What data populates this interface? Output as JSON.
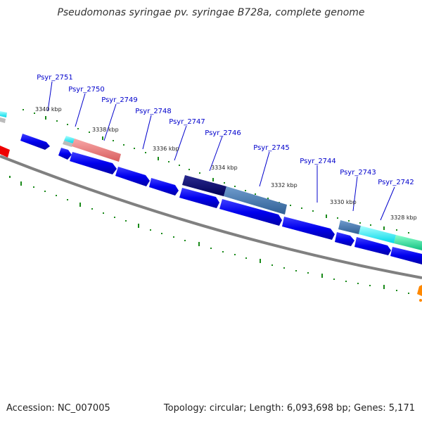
{
  "title": "Pseudomonas syringae pv. syringae B728a, complete genome",
  "accession": "Accession: NC_007005",
  "summary": "Topology: circular; Length: 6,093,698 bp; Genes: 5,171",
  "colors": {
    "forward_gene": "#0000ee",
    "backbone": "#808080",
    "label": "#0000cc",
    "tick": "#1a8a1a"
  },
  "gene_labels": [
    "Psyr_2751",
    "Psyr_2750",
    "Psyr_2749",
    "Psyr_2748",
    "Psyr_2747",
    "Psyr_2746",
    "Psyr_2745",
    "Psyr_2744",
    "Psyr_2743",
    "Psyr_2742"
  ],
  "kbp_labels": [
    "3340 kbp",
    "3338 kbp",
    "3336 kbp",
    "3334 kbp",
    "3332 kbp",
    "3330 kbp",
    "3328 kbp"
  ]
}
